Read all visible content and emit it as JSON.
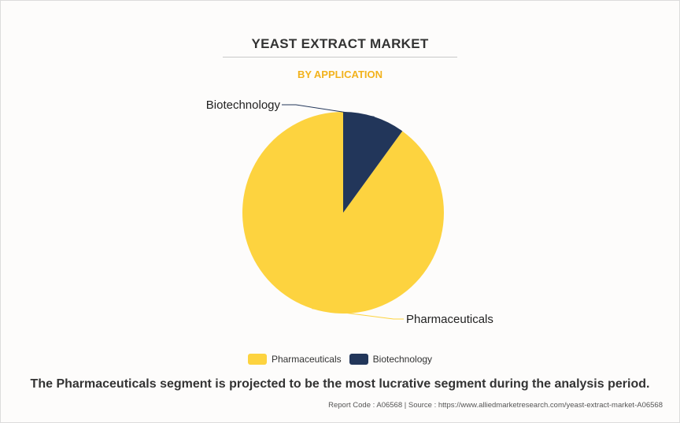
{
  "header": {
    "title": "YEAST EXTRACT MARKET",
    "subtitle": "BY APPLICATION"
  },
  "chart_data": {
    "type": "pie",
    "title": "YEAST EXTRACT MARKET",
    "subtitle": "BY APPLICATION",
    "slices": [
      {
        "label": "Pharmaceuticals",
        "value": 90,
        "color": "#fdd33f"
      },
      {
        "label": "Biotechnology",
        "value": 10,
        "color": "#22365a"
      }
    ],
    "start_angle_deg": 0,
    "direction": "counterclockwise",
    "legend_position": "bottom"
  },
  "legend": {
    "items": [
      {
        "label": "Pharmaceuticals",
        "color": "#fdd33f"
      },
      {
        "label": "Biotechnology",
        "color": "#22365a"
      }
    ]
  },
  "caption": "The Pharmaceuticals segment is projected to be the most lucrative segment during the analysis period.",
  "footer": "Report Code : A06568  |  Source : https://www.alliedmarketresearch.com/yeast-extract-market-A06568"
}
